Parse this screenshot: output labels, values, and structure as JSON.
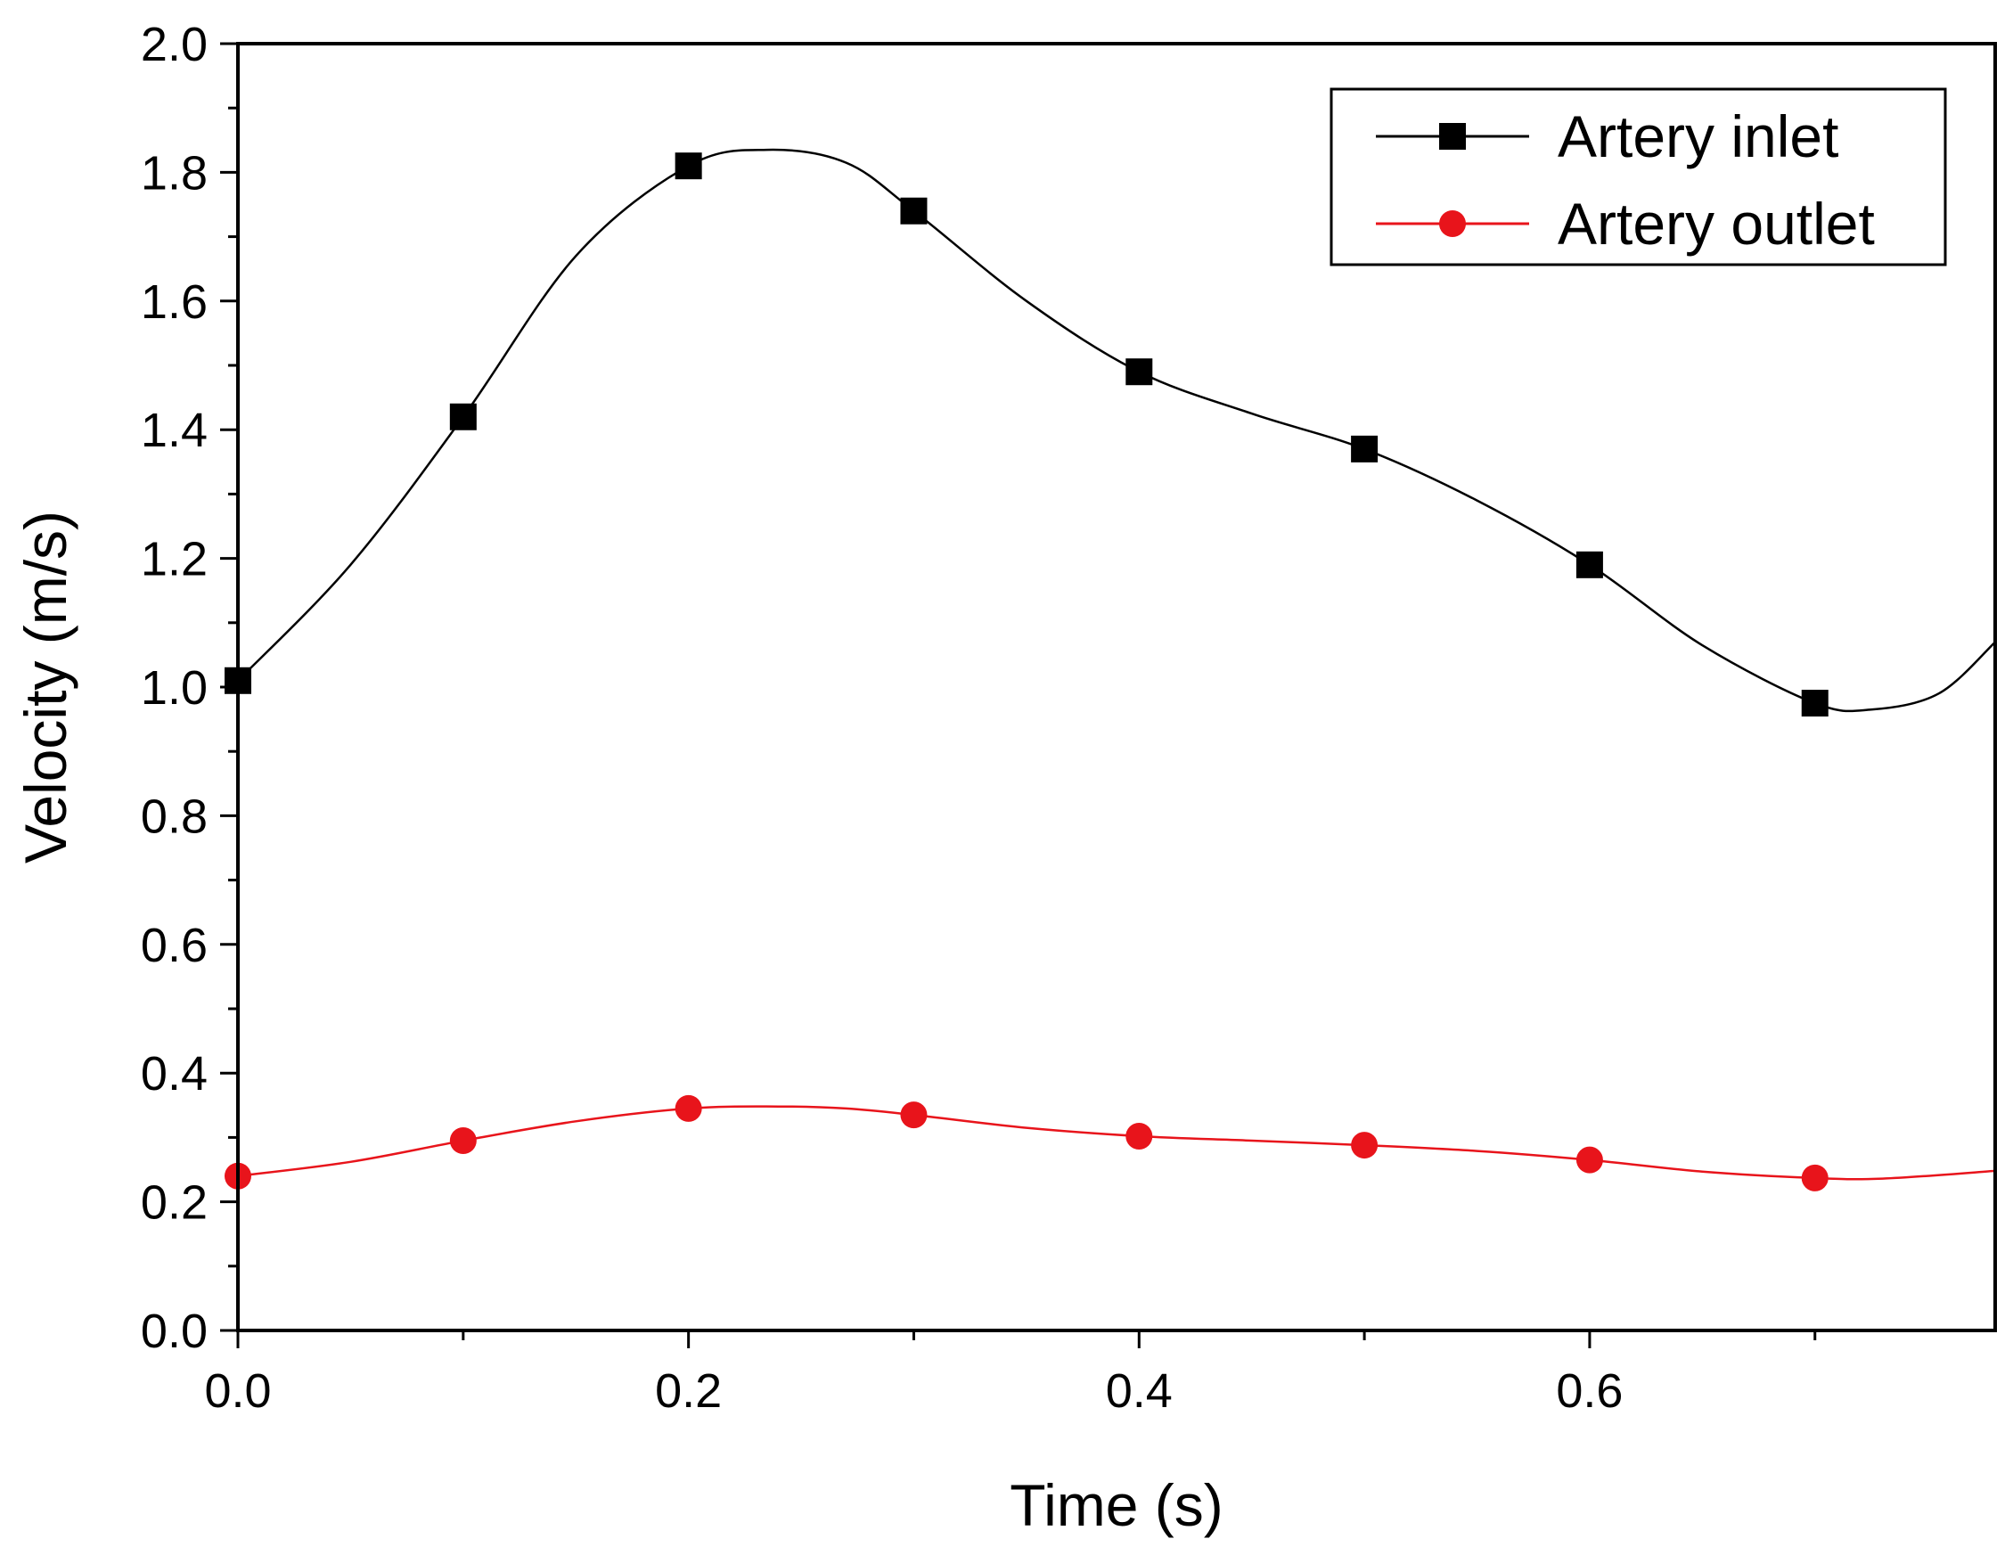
{
  "chart_data": {
    "type": "line",
    "title": "",
    "xlabel": "Time (s)",
    "ylabel": "Velocity (m/s)",
    "xlim": [
      0,
      0.78
    ],
    "ylim": [
      0,
      2.0
    ],
    "xticks": [
      0.0,
      0.2,
      0.4,
      0.6
    ],
    "xtick_labels": [
      "0.0",
      "0.2",
      "0.4",
      "0.6"
    ],
    "yticks": [
      0.0,
      0.2,
      0.4,
      0.6,
      0.8,
      1.0,
      1.2,
      1.4,
      1.6,
      1.8,
      2.0
    ],
    "ytick_labels": [
      "0.0",
      "0.2",
      "0.4",
      "0.6",
      "0.8",
      "1.0",
      "1.2",
      "1.4",
      "1.6",
      "1.8",
      "2.0"
    ],
    "legend_position": "top-right",
    "grid": false,
    "series": [
      {
        "name": "Artery inlet",
        "color": "#000000",
        "marker": "square",
        "points": [
          [
            0.0,
            1.01
          ],
          [
            0.1,
            1.42
          ],
          [
            0.2,
            1.81
          ],
          [
            0.3,
            1.74
          ],
          [
            0.4,
            1.49
          ],
          [
            0.5,
            1.37
          ],
          [
            0.6,
            1.19
          ],
          [
            0.7,
            0.975
          ]
        ],
        "curve": [
          [
            0.0,
            1.01
          ],
          [
            0.05,
            1.19
          ],
          [
            0.1,
            1.42
          ],
          [
            0.15,
            1.67
          ],
          [
            0.2,
            1.81
          ],
          [
            0.235,
            1.835
          ],
          [
            0.27,
            1.815
          ],
          [
            0.3,
            1.74
          ],
          [
            0.35,
            1.6
          ],
          [
            0.4,
            1.49
          ],
          [
            0.45,
            1.425
          ],
          [
            0.5,
            1.37
          ],
          [
            0.55,
            1.29
          ],
          [
            0.6,
            1.19
          ],
          [
            0.65,
            1.065
          ],
          [
            0.7,
            0.975
          ],
          [
            0.725,
            0.965
          ],
          [
            0.755,
            0.99
          ],
          [
            0.78,
            1.07
          ]
        ]
      },
      {
        "name": "Artery outlet",
        "color": "#e8141b",
        "marker": "circle",
        "points": [
          [
            0.0,
            0.24
          ],
          [
            0.1,
            0.295
          ],
          [
            0.2,
            0.345
          ],
          [
            0.3,
            0.335
          ],
          [
            0.4,
            0.302
          ],
          [
            0.5,
            0.288
          ],
          [
            0.6,
            0.265
          ],
          [
            0.7,
            0.237
          ]
        ],
        "curve": [
          [
            0.0,
            0.24
          ],
          [
            0.05,
            0.262
          ],
          [
            0.1,
            0.295
          ],
          [
            0.15,
            0.325
          ],
          [
            0.2,
            0.345
          ],
          [
            0.24,
            0.348
          ],
          [
            0.27,
            0.345
          ],
          [
            0.3,
            0.335
          ],
          [
            0.35,
            0.315
          ],
          [
            0.4,
            0.302
          ],
          [
            0.45,
            0.295
          ],
          [
            0.5,
            0.288
          ],
          [
            0.55,
            0.279
          ],
          [
            0.6,
            0.265
          ],
          [
            0.65,
            0.247
          ],
          [
            0.7,
            0.237
          ],
          [
            0.73,
            0.236
          ],
          [
            0.78,
            0.248
          ]
        ]
      }
    ]
  }
}
